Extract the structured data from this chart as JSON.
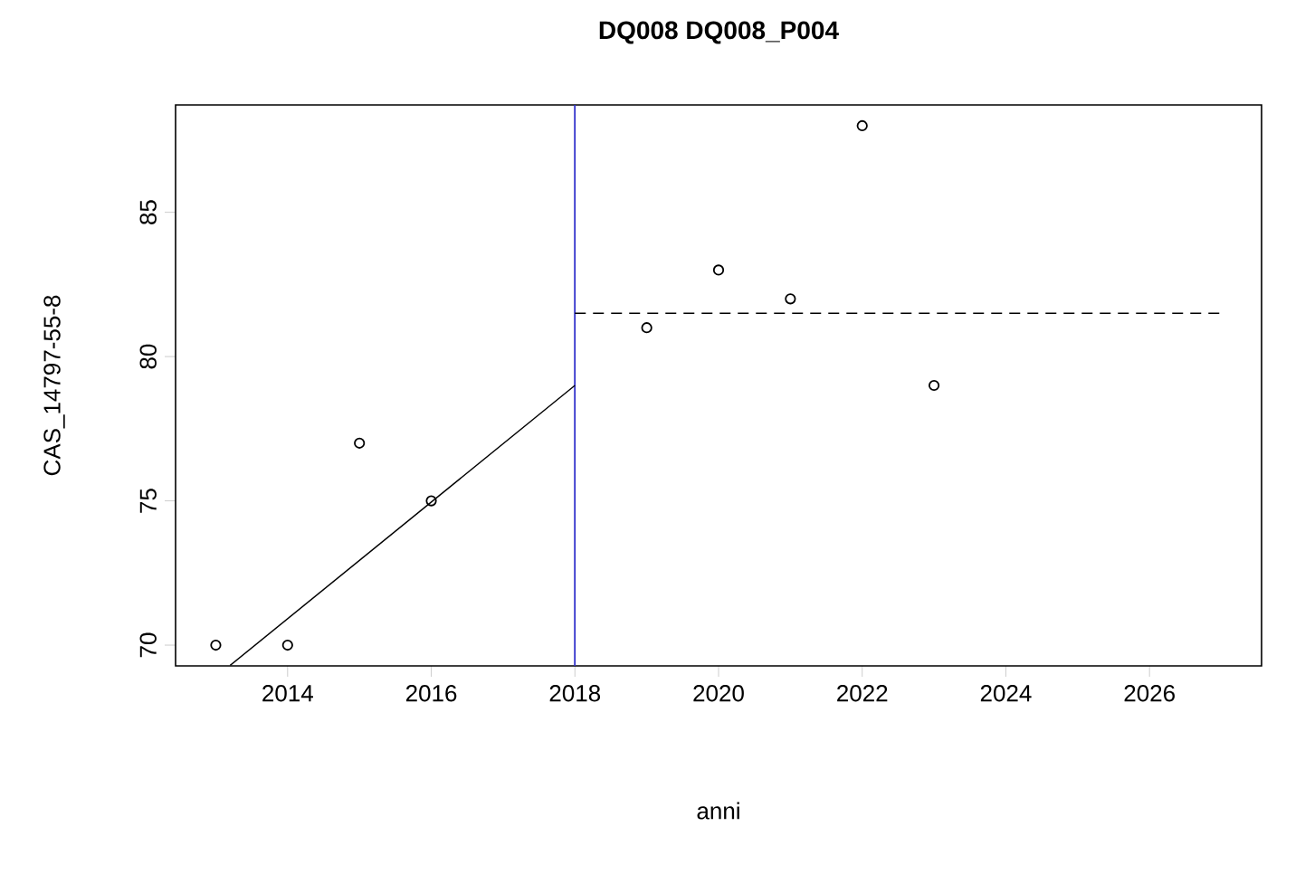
{
  "chart_data": {
    "type": "scatter",
    "title": "DQ008 DQ008_P004",
    "xlabel": "anni",
    "ylabel": "CAS_14797-55-8",
    "xlim": [
      2012.44,
      2027.56
    ],
    "ylim": [
      69.28,
      88.72
    ],
    "xticks": [
      2014,
      2016,
      2018,
      2020,
      2022,
      2024,
      2026
    ],
    "yticks": [
      70,
      75,
      80,
      85
    ],
    "marker": "circle",
    "series": [
      {
        "color": "#000000",
        "x": [
          2013,
          2014,
          2015,
          2016,
          2019,
          2020,
          2021,
          2022,
          2023
        ],
        "values": [
          70,
          70,
          77,
          75,
          81,
          83,
          82,
          88,
          79
        ]
      },
      {
        "type": "line",
        "color": "#000000",
        "x": [
          2013.2,
          2018
        ],
        "values": [
          69.3,
          79
        ],
        "marker": "none",
        "line_style": "solid"
      },
      {
        "type": "line",
        "color": "#000000",
        "x": [
          2018,
          2027
        ],
        "values": [
          81.5,
          81.5
        ],
        "marker": "none",
        "line_style": "dashed"
      }
    ],
    "ref_lines": [
      {
        "axis": "x",
        "value": 2018,
        "color": "#3333cc"
      }
    ]
  }
}
